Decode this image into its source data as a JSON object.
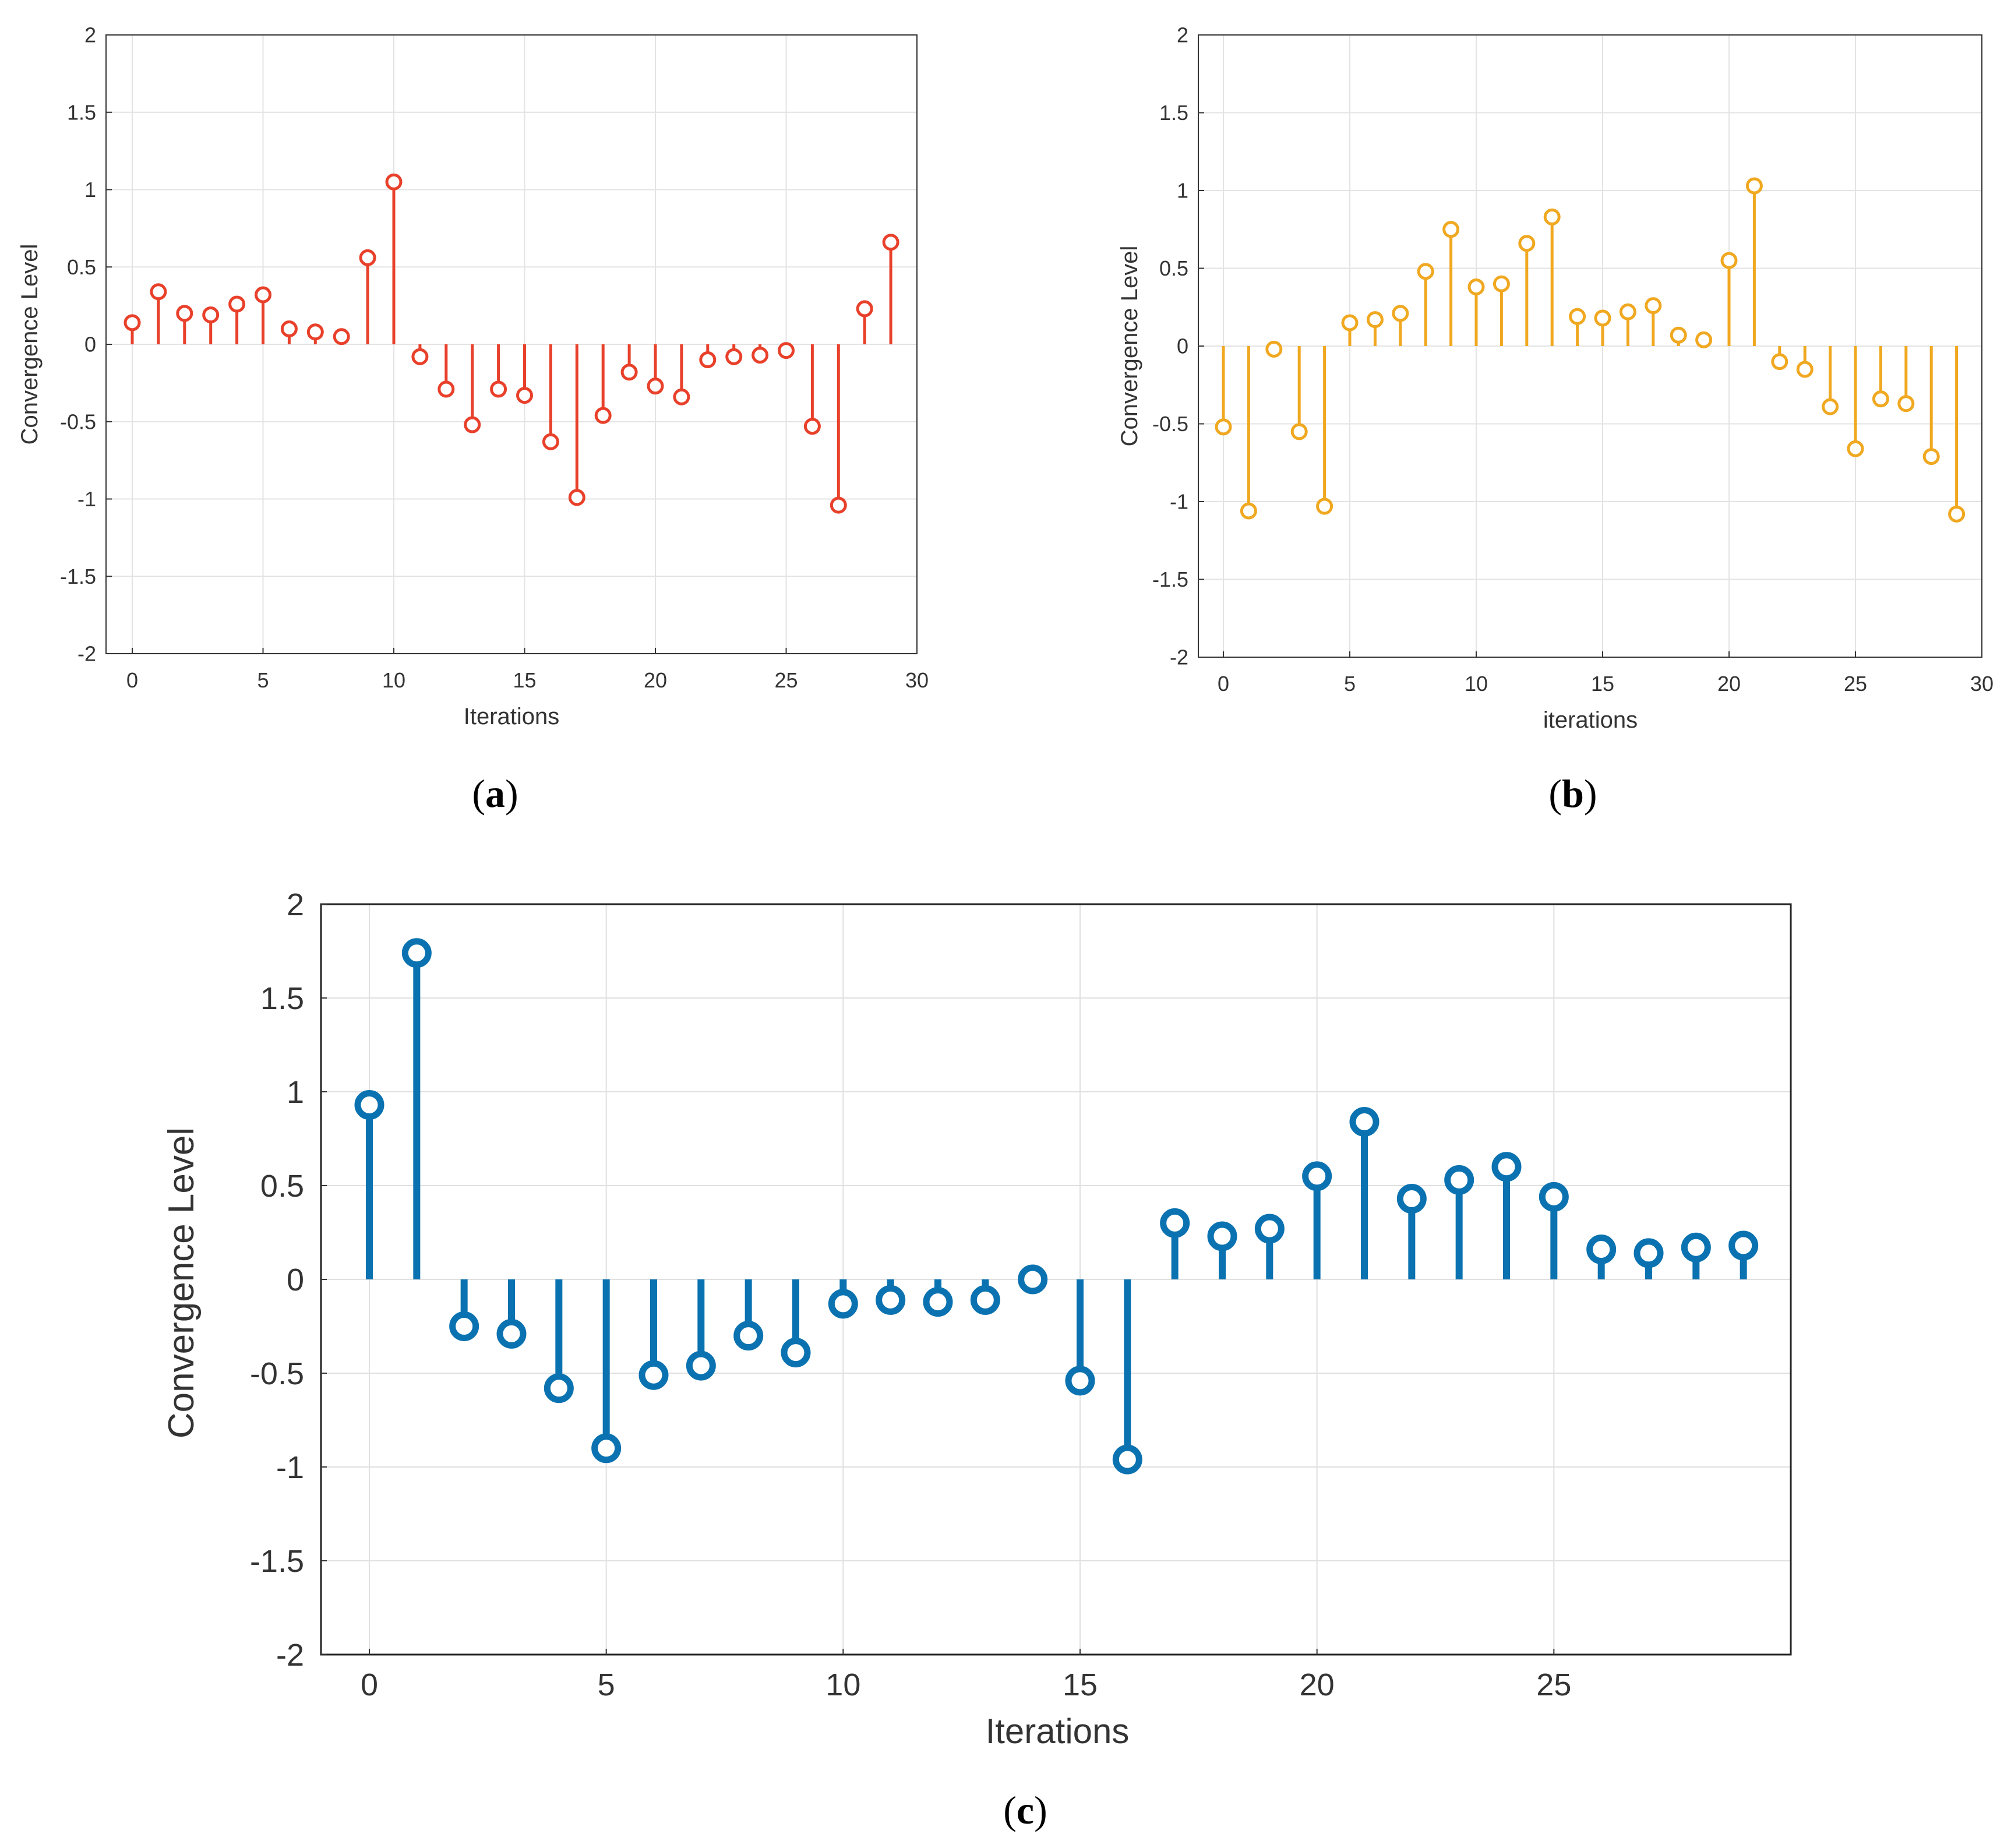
{
  "chart_data": [
    {
      "id": "a",
      "type": "stem",
      "caption_letter": "a",
      "color": "#e8402a",
      "xlabel": "Iterations",
      "ylabel": "Convergence Level",
      "xlim": [
        -1,
        30
      ],
      "ylim": [
        -2,
        2
      ],
      "xticks": [
        0,
        5,
        10,
        15,
        20,
        25,
        30
      ],
      "yticks": [
        2,
        1.5,
        1,
        0.5,
        0,
        -0.5,
        -1,
        -1.5,
        -2
      ],
      "grid": true,
      "x": [
        0,
        1,
        2,
        3,
        4,
        5,
        6,
        7,
        8,
        9,
        10,
        11,
        12,
        13,
        14,
        15,
        16,
        17,
        18,
        19,
        20,
        21,
        22,
        23,
        24,
        25,
        26,
        27,
        28,
        29
      ],
      "values": [
        0.14,
        0.34,
        0.2,
        0.19,
        0.26,
        0.32,
        0.1,
        0.08,
        0.05,
        0.56,
        1.05,
        -0.08,
        -0.29,
        -0.52,
        -0.29,
        -0.33,
        -0.63,
        -0.99,
        -0.46,
        -0.18,
        -0.27,
        -0.34,
        -0.1,
        -0.08,
        -0.07,
        -0.04,
        -0.53,
        -1.04,
        0.23,
        0.66
      ]
    },
    {
      "id": "b",
      "type": "stem",
      "caption_letter": "b",
      "color": "#f0a820",
      "xlabel": "iterations",
      "ylabel": "Convergence Level",
      "xlim": [
        -1,
        30
      ],
      "ylim": [
        -2,
        2
      ],
      "xticks": [
        0,
        5,
        10,
        15,
        20,
        25,
        30
      ],
      "yticks": [
        2,
        1.5,
        1,
        0.5,
        0,
        -0.5,
        -1,
        -1.5,
        -2
      ],
      "grid": true,
      "x": [
        0,
        1,
        2,
        3,
        4,
        5,
        6,
        7,
        8,
        9,
        10,
        11,
        12,
        13,
        14,
        15,
        16,
        17,
        18,
        19,
        20,
        21,
        22,
        23,
        24,
        25,
        26,
        27,
        28,
        29
      ],
      "values": [
        -0.52,
        -1.06,
        -0.02,
        -0.55,
        -1.03,
        0.15,
        0.17,
        0.21,
        0.48,
        0.75,
        0.38,
        0.4,
        0.66,
        0.83,
        0.19,
        0.18,
        0.22,
        0.26,
        0.07,
        0.04,
        0.55,
        1.03,
        -0.1,
        -0.15,
        -0.39,
        -0.66,
        -0.34,
        -0.37,
        -0.71,
        -1.08
      ]
    },
    {
      "id": "c",
      "type": "stem",
      "caption_letter": "c",
      "color": "#0a72b0",
      "xlabel": "Iterations",
      "ylabel": "Convergence Level",
      "xlim": [
        -1,
        30
      ],
      "ylim": [
        -2,
        2
      ],
      "xticks": [
        0,
        5,
        10,
        15,
        20,
        25
      ],
      "yticks": [
        2,
        1.5,
        1,
        0.5,
        0,
        -0.5,
        -1,
        -1.5,
        -2
      ],
      "grid": true,
      "x": [
        0,
        1,
        2,
        3,
        4,
        5,
        6,
        7,
        8,
        9,
        10,
        11,
        12,
        13,
        14,
        15,
        16,
        17,
        18,
        19,
        20,
        21,
        22,
        23,
        24,
        25,
        26,
        27,
        28,
        29
      ],
      "values": [
        0.93,
        1.74,
        -0.25,
        -0.29,
        -0.58,
        -0.9,
        -0.51,
        -0.46,
        -0.3,
        -0.39,
        -0.13,
        -0.11,
        -0.12,
        -0.11,
        0.0,
        -0.54,
        -0.96,
        0.3,
        0.23,
        0.27,
        0.55,
        0.84,
        0.43,
        0.53,
        0.6,
        0.44,
        0.16,
        0.14,
        0.17,
        0.18
      ]
    }
  ]
}
